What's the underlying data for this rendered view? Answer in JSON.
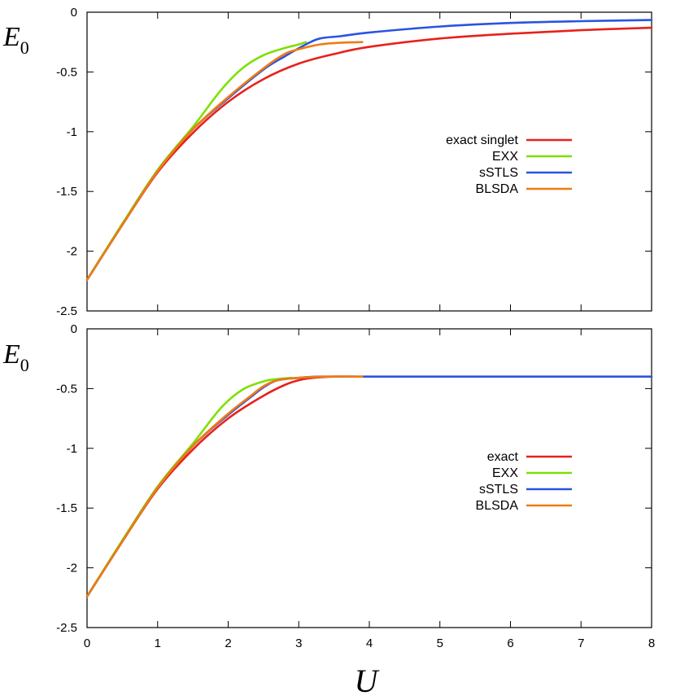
{
  "xlabel": "U",
  "chart_data": [
    {
      "type": "line",
      "panel": "top",
      "ylabel": "E",
      "ylabel_subscript": "0",
      "xlim": [
        0,
        8
      ],
      "ylim": [
        -2.5,
        0
      ],
      "xticks": [
        "0",
        "1",
        "2",
        "3",
        "4",
        "5",
        "6",
        "7",
        "8"
      ],
      "xtick_values": [
        0,
        1,
        2,
        3,
        4,
        5,
        6,
        7,
        8
      ],
      "yticks": [
        "0",
        "-0.5",
        "-1",
        "-1.5",
        "-2",
        "-2.5"
      ],
      "ytick_values": [
        0,
        -0.5,
        -1,
        -1.5,
        -2,
        -2.5
      ],
      "show_xtick_labels": false,
      "legend_position": "middle-right",
      "series": [
        {
          "name": "exact singlet",
          "color": "#e8211b",
          "x": [
            0,
            0.5,
            1,
            1.5,
            2,
            2.5,
            3,
            3.5,
            4,
            5,
            6,
            7,
            8
          ],
          "y": [
            -2.24,
            -1.78,
            -1.34,
            -1.01,
            -0.75,
            -0.56,
            -0.43,
            -0.35,
            -0.29,
            -0.22,
            -0.18,
            -0.15,
            -0.13
          ]
        },
        {
          "name": "EXX",
          "color": "#7fe000",
          "x": [
            0,
            0.5,
            1,
            1.5,
            1.9,
            2.2,
            2.5,
            2.8,
            3.0,
            3.1
          ],
          "y": [
            -2.24,
            -1.77,
            -1.32,
            -0.96,
            -0.65,
            -0.47,
            -0.36,
            -0.3,
            -0.27,
            -0.25
          ]
        },
        {
          "name": "sSTLS",
          "color": "#2a54e0",
          "x": [
            0,
            0.5,
            1,
            1.5,
            2,
            2.5,
            2.8,
            3.1,
            3.3,
            3.6,
            4,
            5,
            6,
            7,
            8
          ],
          "y": [
            -2.24,
            -1.78,
            -1.33,
            -0.98,
            -0.72,
            -0.48,
            -0.37,
            -0.27,
            -0.22,
            -0.2,
            -0.17,
            -0.12,
            -0.09,
            -0.075,
            -0.065
          ]
        },
        {
          "name": "BLSDA",
          "color": "#f07a12",
          "x": [
            0,
            0.5,
            1,
            1.5,
            2,
            2.5,
            2.8,
            3.0,
            3.3,
            3.6,
            3.9
          ],
          "y": [
            -2.24,
            -1.78,
            -1.33,
            -0.98,
            -0.71,
            -0.47,
            -0.35,
            -0.31,
            -0.27,
            -0.255,
            -0.25
          ]
        }
      ]
    },
    {
      "type": "line",
      "panel": "bottom",
      "ylabel": "E",
      "ylabel_subscript": "0",
      "xlim": [
        0,
        8
      ],
      "ylim": [
        -2.5,
        0
      ],
      "xticks": [
        "0",
        "1",
        "2",
        "3",
        "4",
        "5",
        "6",
        "7",
        "8"
      ],
      "xtick_values": [
        0,
        1,
        2,
        3,
        4,
        5,
        6,
        7,
        8
      ],
      "yticks": [
        "0",
        "-0.5",
        "-1",
        "-1.5",
        "-2",
        "-2.5"
      ],
      "ytick_values": [
        0,
        -0.5,
        -1,
        -1.5,
        -2,
        -2.5
      ],
      "show_xtick_labels": true,
      "legend_position": "middle-right",
      "series": [
        {
          "name": "exact",
          "color": "#e8211b",
          "x": [
            0,
            0.5,
            1,
            1.5,
            2,
            2.5,
            2.8,
            3.0,
            3.2,
            3.5,
            3.8
          ],
          "y": [
            -2.24,
            -1.78,
            -1.34,
            -1.01,
            -0.75,
            -0.56,
            -0.47,
            -0.43,
            -0.41,
            -0.4,
            -0.4
          ]
        },
        {
          "name": "EXX",
          "color": "#7fe000",
          "x": [
            0,
            0.5,
            1,
            1.5,
            1.9,
            2.2,
            2.5,
            2.7,
            2.9
          ],
          "y": [
            -2.24,
            -1.77,
            -1.32,
            -0.96,
            -0.66,
            -0.51,
            -0.44,
            -0.42,
            -0.41
          ]
        },
        {
          "name": "sSTLS",
          "color": "#2a54e0",
          "x": [
            0,
            0.5,
            1,
            1.5,
            2,
            2.3,
            2.5,
            2.7,
            3.0,
            3.3,
            4,
            5,
            6,
            7,
            8
          ],
          "y": [
            -2.24,
            -1.78,
            -1.33,
            -0.98,
            -0.72,
            -0.58,
            -0.49,
            -0.43,
            -0.41,
            -0.4,
            -0.4,
            -0.4,
            -0.4,
            -0.4,
            -0.4
          ]
        },
        {
          "name": "BLSDA",
          "color": "#f07a12",
          "x": [
            0,
            0.5,
            1,
            1.5,
            2,
            2.3,
            2.5,
            2.7,
            3.0,
            3.4,
            3.9
          ],
          "y": [
            -2.24,
            -1.78,
            -1.33,
            -0.98,
            -0.71,
            -0.57,
            -0.48,
            -0.43,
            -0.41,
            -0.4,
            -0.4
          ]
        }
      ]
    }
  ]
}
